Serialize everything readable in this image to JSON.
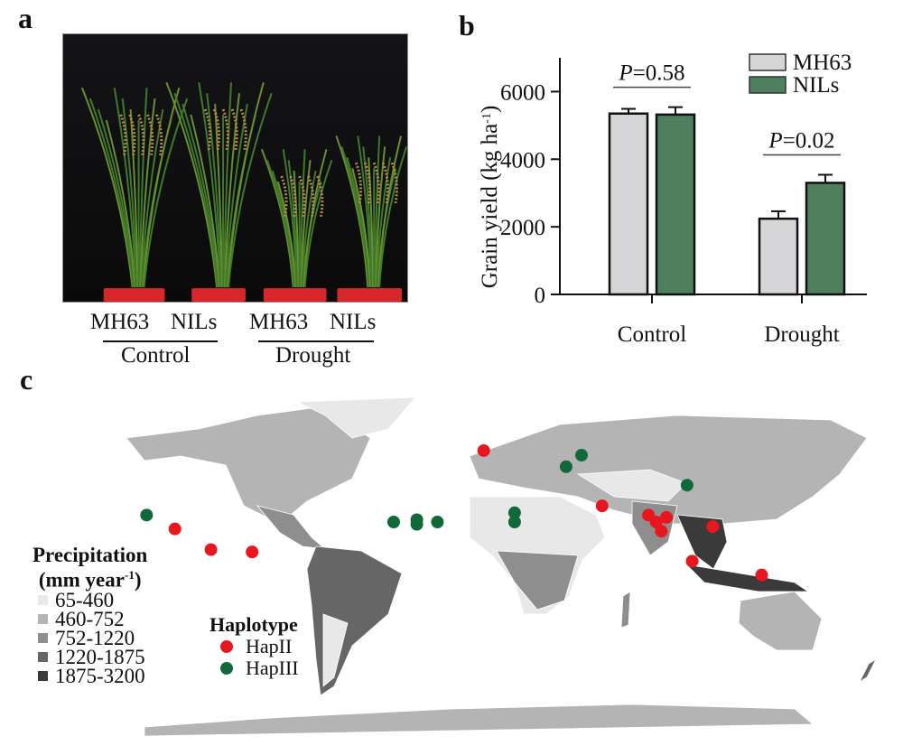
{
  "panels": {
    "a": {
      "letter": "a",
      "genotype_labels": [
        "MH63",
        "NILs",
        "MH63",
        "NILs"
      ],
      "condition_labels": [
        "Control",
        "Drought"
      ],
      "photo_description": "Rice plants in red pots against black backdrop"
    },
    "b": {
      "letter": "b"
    },
    "c": {
      "letter": "c"
    }
  },
  "colors": {
    "mh63": "#d6d6d8",
    "nils": "#4f7f5e",
    "hapII": "#e8161e",
    "hapIII": "#11693a",
    "precip": [
      "#e8e8e8",
      "#b4b4b4",
      "#8e8e8e",
      "#666666",
      "#3a3a3a"
    ]
  },
  "chart_data": [
    {
      "type": "bar",
      "title": "",
      "xlabel": "",
      "ylabel": "Grain yield (kg ha-1)",
      "ylabel_main": "Grain yield (kg ha",
      "ylabel_sup": "-1",
      "ylabel_close": ")",
      "ylim": [
        0,
        7000
      ],
      "yticks": [
        0,
        2000,
        4000,
        6000
      ],
      "ytick_labels": [
        "0",
        "2000",
        "4000",
        "6000"
      ],
      "categories": [
        "Control",
        "Drought"
      ],
      "series": [
        {
          "name": "MH63",
          "values": [
            5350,
            2240
          ],
          "errors": [
            140,
            220
          ]
        },
        {
          "name": "NILs",
          "values": [
            5320,
            3300
          ],
          "errors": [
            220,
            240
          ]
        }
      ],
      "annotations": [
        {
          "category": "Control",
          "italic": "P",
          "text": "=0.58"
        },
        {
          "category": "Drought",
          "italic": "P",
          "text": "=0.02"
        }
      ],
      "legend": {
        "position": "top-right",
        "entries": [
          "MH63",
          "NILs"
        ]
      },
      "grid": false
    },
    {
      "type": "scatter",
      "title": "World map of haplotype distribution over precipitation",
      "legend_precip": {
        "title_line1": "Precipitation",
        "title_line2_main": "(mm year",
        "title_line2_sup": "-1",
        "title_line2_close": ")",
        "entries": [
          "65-460",
          "460-752",
          "752-1220",
          "1220-1875",
          "1875-3200"
        ]
      },
      "legend_haplotype": {
        "title": "Haplotype",
        "entries": [
          "HapII",
          "HapIII"
        ]
      },
      "points": [
        {
          "region": "Mexico",
          "lon": -99,
          "lat": 21,
          "hap": "HapIII"
        },
        {
          "region": "Central America",
          "lon": -88,
          "lat": 15,
          "hap": "HapII"
        },
        {
          "region": "Colombia",
          "lon": -74,
          "lat": 6,
          "hap": "HapII"
        },
        {
          "region": "Guyana",
          "lon": -58,
          "lat": 5,
          "hap": "HapII"
        },
        {
          "region": "Ukraine",
          "lon": 32,
          "lat": 49,
          "hap": "HapII"
        },
        {
          "region": "Kazakhstan",
          "lon": 70,
          "lat": 47,
          "hap": "HapIII"
        },
        {
          "region": "Uzbekistan",
          "lon": 64,
          "lat": 42,
          "hap": "HapIII"
        },
        {
          "region": "Mali",
          "lon": -3,
          "lat": 18,
          "hap": "HapIII"
        },
        {
          "region": "Niger",
          "lon": 6,
          "lat": 19,
          "hap": "HapIII"
        },
        {
          "region": "Niger",
          "lon": 6,
          "lat": 17,
          "hap": "HapIII"
        },
        {
          "region": "Chad",
          "lon": 14,
          "lat": 18,
          "hap": "HapIII"
        },
        {
          "region": "Saudi Arabia",
          "lon": 44,
          "lat": 22,
          "hap": "HapIII"
        },
        {
          "region": "Saudi Arabia",
          "lon": 44,
          "lat": 18,
          "hap": "HapIII"
        },
        {
          "region": "China",
          "lon": 111,
          "lat": 34,
          "hap": "HapIII"
        },
        {
          "region": "India",
          "lon": 78,
          "lat": 25,
          "hap": "HapII"
        },
        {
          "region": "Myanmar",
          "lon": 96,
          "lat": 21,
          "hap": "HapII"
        },
        {
          "region": "Myanmar",
          "lon": 99,
          "lat": 18,
          "hap": "HapII"
        },
        {
          "region": "Laos",
          "lon": 103,
          "lat": 20,
          "hap": "HapII"
        },
        {
          "region": "Thailand",
          "lon": 101,
          "lat": 14,
          "hap": "HapII"
        },
        {
          "region": "Philippines",
          "lon": 121,
          "lat": 16,
          "hap": "HapII"
        },
        {
          "region": "Borneo",
          "lon": 113,
          "lat": 1,
          "hap": "HapII"
        },
        {
          "region": "New Guinea",
          "lon": 140,
          "lat": -5,
          "hap": "HapII"
        }
      ]
    }
  ]
}
